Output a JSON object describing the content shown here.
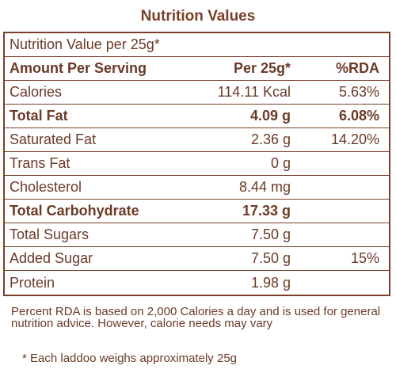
{
  "title": "Nutrition Values",
  "per_line": "Nutrition Value per 25g*",
  "header": {
    "col1": "Amount Per Serving",
    "col2": "Per 25g*",
    "col3": "%RDA"
  },
  "rows": [
    {
      "label": "Calories",
      "per": "114.11 Kcal",
      "rda": "5.63%",
      "bold": false
    },
    {
      "label": "Total Fat",
      "per": "4.09 g",
      "rda": "6.08%",
      "bold": true
    },
    {
      "label": "Saturated Fat",
      "per": "2.36 g",
      "rda": "14.20%",
      "bold": false
    },
    {
      "label": "Trans Fat",
      "per": "0 g",
      "rda": "",
      "bold": false
    },
    {
      "label": "Cholesterol",
      "per": "8.44 mg",
      "rda": "",
      "bold": false
    },
    {
      "label": "Total Carbohydrate",
      "per": "17.33 g",
      "rda": "",
      "bold": true
    },
    {
      "label": "Total Sugars",
      "per": "7.50 g",
      "rda": "",
      "bold": false
    },
    {
      "label": "Added Sugar",
      "per": "7.50 g",
      "rda": "15%",
      "bold": false
    },
    {
      "label": "Protein",
      "per": "1.98 g",
      "rda": "",
      "bold": false
    }
  ],
  "footer": "Percent RDA is based on 2,000 Calories a day and is used for general nutrition advice. However, calorie needs may vary",
  "footnote": "* Each laddoo weighs approximately 25g",
  "colors": {
    "brand_brown": "#7a3f28",
    "text_brown": "#6b3a26"
  }
}
